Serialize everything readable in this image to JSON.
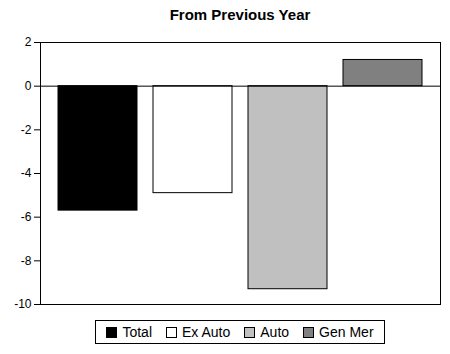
{
  "chart_data": {
    "type": "bar",
    "title": "From Previous Year",
    "categories": [
      "Total",
      "Ex Auto",
      "Auto",
      "Gen Mer"
    ],
    "values": [
      -5.7,
      -4.9,
      -9.3,
      1.2
    ],
    "colors": [
      "#000000",
      "#ffffff",
      "#c0c0c0",
      "#808080"
    ],
    "ylim": [
      -10,
      2
    ],
    "yticks": [
      -10,
      -8,
      -6,
      -4,
      -2,
      0,
      2
    ],
    "grid": false,
    "legend": "bottom",
    "tick_labels": "y"
  }
}
